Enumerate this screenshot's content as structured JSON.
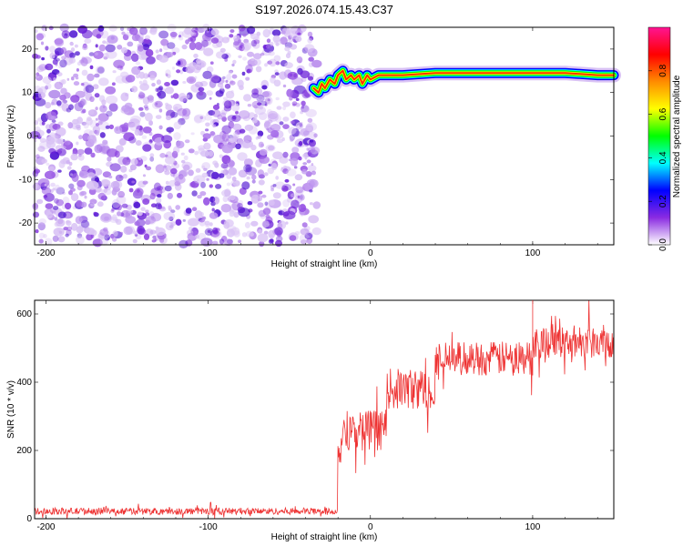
{
  "title": "S197.2026.074.15.43.C37",
  "chart_data": [
    {
      "type": "heatmap",
      "name": "spectrogram",
      "xlabel": "Height of straight line (km)",
      "ylabel": "Frequency (Hz)",
      "xlim": [
        -207,
        150
      ],
      "ylim": [
        -25,
        25
      ],
      "xticks": [
        -200,
        -100,
        0,
        100
      ],
      "yticks": [
        -20,
        -10,
        0,
        10,
        20
      ],
      "colorbar": {
        "label": "Normalized spectral amplitude",
        "range": [
          0.0,
          1.0
        ],
        "ticks": [
          0.0,
          0.2,
          0.4,
          0.6,
          0.8
        ],
        "tick_labels": [
          "0.0",
          "0.2",
          "0.4",
          "0.6",
          "0.8"
        ],
        "colormap": [
          "#ffffff",
          "#8a2be2",
          "#0000ff",
          "#00ffff",
          "#00ff00",
          "#ffff00",
          "#ff8c00",
          "#ff0000",
          "#ff1493"
        ]
      },
      "noise_region": {
        "x_from": -207,
        "x_to": -33,
        "typical_amplitude": 0.15
      },
      "signal_trace": {
        "x": [
          -35,
          -32,
          -30,
          -28,
          -25,
          -22,
          -20,
          -17,
          -15,
          -12,
          -10,
          -7,
          -5,
          -2,
          0,
          5,
          10,
          20,
          40,
          60,
          80,
          100,
          120,
          140,
          150
        ],
        "freq": [
          11,
          10,
          12,
          11,
          13,
          12,
          14,
          15,
          13,
          14,
          13,
          14,
          12,
          14,
          13,
          14,
          14,
          14,
          14.5,
          14.5,
          14.5,
          14.5,
          14.5,
          14,
          14
        ],
        "peak_amplitude": 0.9
      }
    },
    {
      "type": "line",
      "name": "snr",
      "xlabel": "Height of straight line (km)",
      "ylabel": "SNR (10 * v/v)",
      "xlim": [
        -207,
        150
      ],
      "ylim": [
        0,
        640
      ],
      "xticks": [
        -200,
        -100,
        0,
        100
      ],
      "yticks": [
        0,
        200,
        400,
        600
      ],
      "color": "#ee3333",
      "segments": [
        {
          "x_from": -207,
          "x_to": -20,
          "mean": 22,
          "noise": 10
        },
        {
          "x_from": -20,
          "x_to": -18,
          "mean": 200,
          "noise": 40
        },
        {
          "x_from": -18,
          "x_to": 10,
          "mean": 260,
          "noise": 60
        },
        {
          "x_from": 10,
          "x_to": 40,
          "mean": 380,
          "noise": 60
        },
        {
          "x_from": 40,
          "x_to": 100,
          "mean": 470,
          "noise": 50
        },
        {
          "x_from": 100,
          "x_to": 150,
          "mean": 520,
          "noise": 50
        }
      ],
      "peak": {
        "x": 100,
        "y": 640
      }
    }
  ]
}
